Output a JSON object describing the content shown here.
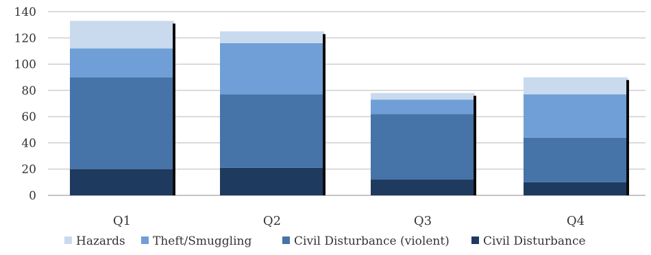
{
  "chart_data": {
    "type": "bar",
    "stacked": true,
    "title": "",
    "xlabel": "",
    "ylabel": "",
    "categories": [
      "Q1",
      "Q2",
      "Q3",
      "Q4"
    ],
    "ylim": [
      0,
      140
    ],
    "yticks": [
      0,
      20,
      40,
      60,
      80,
      100,
      120,
      140
    ],
    "grid": true,
    "legend_position": "bottom",
    "series": [
      {
        "name": "Civil Disturbance",
        "color": "#1f3a5f",
        "values": [
          20,
          21,
          12,
          10
        ]
      },
      {
        "name": "Civil Disturbance (violent)",
        "color": "#4673a8",
        "values": [
          70,
          56,
          50,
          34
        ]
      },
      {
        "name": "Theft/Smuggling",
        "color": "#6f9fd6",
        "values": [
          22,
          39,
          11,
          33
        ]
      },
      {
        "name": "Hazards",
        "color": "#c9daee",
        "values": [
          21,
          9,
          5,
          13
        ]
      }
    ],
    "legend_order": [
      "Hazards",
      "Theft/Smuggling",
      "Civil Disturbance (violent)",
      "Civil Disturbance"
    ]
  }
}
